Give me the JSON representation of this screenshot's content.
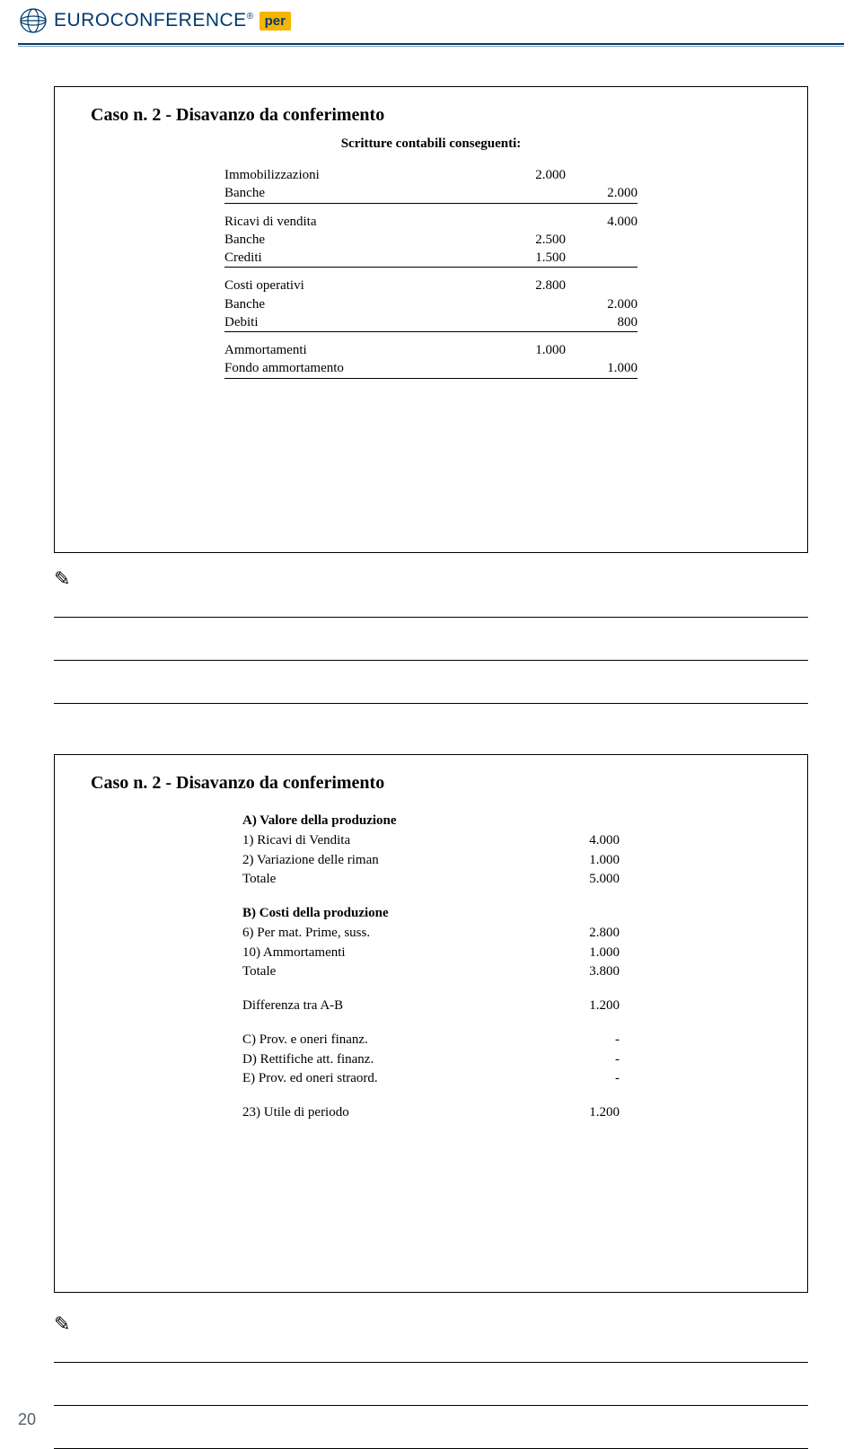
{
  "header": {
    "brand": "EUROCONFERENCE",
    "badge": "per"
  },
  "slide1": {
    "title": "Caso n. 2 - Disavanzo da conferimento",
    "subtitle": "Scritture contabili conseguenti:",
    "groups": [
      {
        "rows": [
          {
            "label": "Immobilizzazioni",
            "debit": "2.000",
            "credit": ""
          },
          {
            "label": "Banche",
            "debit": "",
            "credit": "2.000",
            "underline": true
          }
        ]
      },
      {
        "rows": [
          {
            "label": "Ricavi di vendita",
            "debit": "",
            "credit": "4.000"
          },
          {
            "label": "Banche",
            "debit": "2.500",
            "credit": ""
          },
          {
            "label": "Crediti",
            "debit": "1.500",
            "credit": "",
            "underline": true
          }
        ]
      },
      {
        "rows": [
          {
            "label": "Costi operativi",
            "debit": "2.800",
            "credit": ""
          },
          {
            "label": "Banche",
            "debit": "",
            "credit": "2.000"
          },
          {
            "label": "Debiti",
            "debit": "",
            "credit": "800",
            "underline": true
          }
        ]
      },
      {
        "rows": [
          {
            "label": "Ammortamenti",
            "debit": "1.000",
            "credit": ""
          },
          {
            "label": "Fondo ammortamento",
            "debit": "",
            "credit": "1.000",
            "underline": true
          }
        ]
      }
    ]
  },
  "slide2": {
    "title": "Caso n. 2 - Disavanzo da conferimento",
    "sections": [
      {
        "head": "A) Valore della produzione",
        "rows": [
          {
            "label": "1) Ricavi di Vendita",
            "val": "4.000"
          },
          {
            "label": "2) Variazione delle riman",
            "val": "1.000"
          },
          {
            "label": "Totale",
            "val": "5.000"
          }
        ]
      },
      {
        "head": "B) Costi della produzione",
        "rows": [
          {
            "label": "6) Per mat. Prime, suss.",
            "val": "2.800"
          },
          {
            "label": "10) Ammortamenti",
            "val": "1.000"
          },
          {
            "label": "Totale",
            "val": "3.800"
          }
        ]
      },
      {
        "rows": [
          {
            "label": "Differenza tra A-B",
            "val": "1.200"
          }
        ]
      },
      {
        "rows": [
          {
            "label": "C) Prov. e oneri finanz.",
            "val": "-"
          },
          {
            "label": "D) Rettifiche att. finanz.",
            "val": "-"
          },
          {
            "label": "E) Prov. ed oneri straord.",
            "val": "-"
          }
        ]
      },
      {
        "rows": [
          {
            "label": "23) Utile di periodo",
            "val": "1.200"
          }
        ]
      }
    ]
  },
  "pageNumber": "20"
}
